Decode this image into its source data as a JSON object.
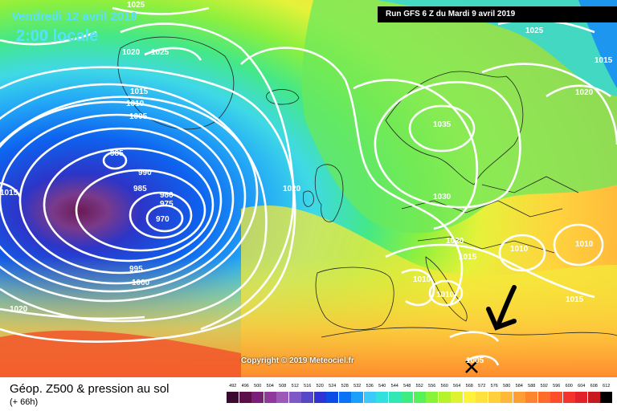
{
  "header": {
    "title": "Vendredi 12 avril 2019",
    "local_time": "2:00 locale",
    "run_info": "Run GFS 6 Z du Mardi 9 avril 2019"
  },
  "copyright": "Copyright © 2019 Meteociel.fr",
  "legend": {
    "title": "Géop. Z500 & pression au sol",
    "forecast_offset": "(+ 66h)",
    "scale": [
      {
        "value": "492",
        "color": "#3a0a2e"
      },
      {
        "value": "496",
        "color": "#5a0e4a"
      },
      {
        "value": "500",
        "color": "#7a1f78"
      },
      {
        "value": "504",
        "color": "#8f3a9a"
      },
      {
        "value": "508",
        "color": "#9c59b8"
      },
      {
        "value": "512",
        "color": "#7f58c8"
      },
      {
        "value": "516",
        "color": "#5547c9"
      },
      {
        "value": "520",
        "color": "#2e33d4"
      },
      {
        "value": "524",
        "color": "#0b4be6"
      },
      {
        "value": "528",
        "color": "#0a72f5"
      },
      {
        "value": "532",
        "color": "#1aa0fb"
      },
      {
        "value": "536",
        "color": "#3cc9fb"
      },
      {
        "value": "540",
        "color": "#33e0e0"
      },
      {
        "value": "544",
        "color": "#31e7b5"
      },
      {
        "value": "548",
        "color": "#3ded82"
      },
      {
        "value": "552",
        "color": "#57f25a"
      },
      {
        "value": "556",
        "color": "#87f43a"
      },
      {
        "value": "560",
        "color": "#b6f32c"
      },
      {
        "value": "564",
        "color": "#dff22e"
      },
      {
        "value": "568",
        "color": "#fff23a"
      },
      {
        "value": "572",
        "color": "#ffe23d"
      },
      {
        "value": "576",
        "color": "#ffcf3e"
      },
      {
        "value": "580",
        "color": "#ffb83a"
      },
      {
        "value": "584",
        "color": "#ff9e33"
      },
      {
        "value": "588",
        "color": "#ff842e"
      },
      {
        "value": "592",
        "color": "#ff6b2b"
      },
      {
        "value": "596",
        "color": "#ff4d2a"
      },
      {
        "value": "600",
        "color": "#f5332d"
      },
      {
        "value": "604",
        "color": "#e0222a"
      },
      {
        "value": "608",
        "color": "#c71a1f"
      },
      {
        "value": "612",
        "color": "#000000"
      }
    ]
  },
  "isobars": [
    {
      "id": "iso-1025-a",
      "label": "1025"
    },
    {
      "id": "iso-1025-b",
      "label": "1025"
    },
    {
      "id": "iso-1025-c",
      "label": "1025"
    },
    {
      "id": "iso-1020-a",
      "label": "1020"
    },
    {
      "id": "iso-1020-b",
      "label": "1020"
    },
    {
      "id": "iso-1020-c",
      "label": "1020"
    },
    {
      "id": "iso-1020-d",
      "label": "1020"
    },
    {
      "id": "iso-1020-e",
      "label": "1020"
    },
    {
      "id": "iso-1015-a",
      "label": "1015"
    },
    {
      "id": "iso-1015-b",
      "label": "1015"
    },
    {
      "id": "iso-1015-c",
      "label": "1015"
    },
    {
      "id": "iso-1015-d",
      "label": "1015"
    },
    {
      "id": "iso-1015-e",
      "label": "1015"
    },
    {
      "id": "iso-1010-a",
      "label": "1010"
    },
    {
      "id": "iso-1010-b",
      "label": "1010"
    },
    {
      "id": "iso-1010-c",
      "label": "1010"
    },
    {
      "id": "iso-1010-d",
      "label": "1010"
    },
    {
      "id": "iso-1010-e",
      "label": "1010"
    },
    {
      "id": "iso-1005-a",
      "label": "1005"
    },
    {
      "id": "iso-1005-b",
      "label": "1005"
    },
    {
      "id": "iso-1000",
      "label": "1000"
    },
    {
      "id": "iso-995",
      "label": "995"
    },
    {
      "id": "iso-990",
      "label": "990"
    },
    {
      "id": "iso-985-a",
      "label": "985"
    },
    {
      "id": "iso-985-b",
      "label": "985"
    },
    {
      "id": "iso-980",
      "label": "980"
    },
    {
      "id": "iso-975",
      "label": "975"
    },
    {
      "id": "iso-970",
      "label": "970"
    },
    {
      "id": "iso-1035",
      "label": "1035"
    },
    {
      "id": "iso-1030",
      "label": "1030"
    }
  ],
  "colors": {
    "low_core": "#6b1a55",
    "deep_blue": "#1f3fc8",
    "cyan": "#3ec9f0",
    "green": "#5ee86a",
    "yellow": "#f2f23a",
    "orange": "#ffab3a",
    "red": "#f04a2a"
  }
}
